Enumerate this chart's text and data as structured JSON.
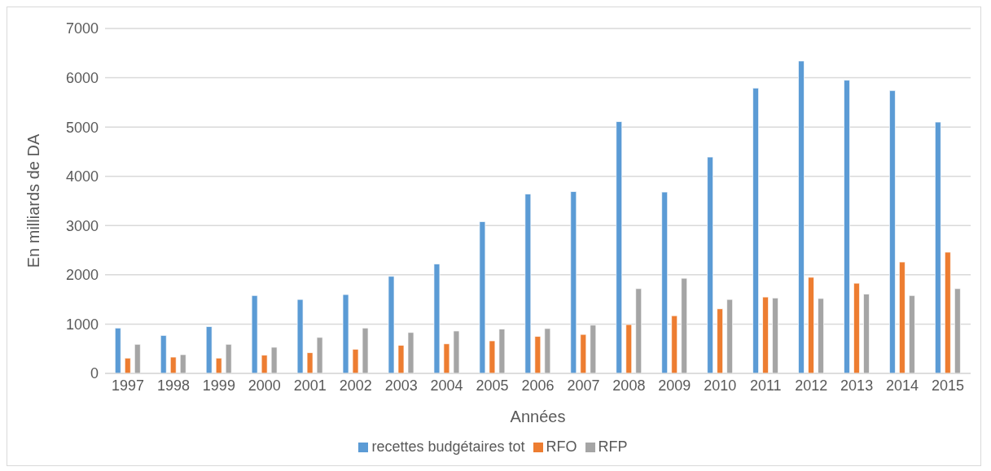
{
  "chart_data": {
    "type": "bar",
    "xlabel": "Années",
    "ylabel": "En milliards de DA",
    "categories": [
      "1997",
      "1998",
      "1999",
      "2000",
      "2001",
      "2002",
      "2003",
      "2004",
      "2005",
      "2006",
      "2007",
      "2008",
      "2009",
      "2010",
      "2011",
      "2012",
      "2013",
      "2014",
      "2015"
    ],
    "series": [
      {
        "name": "recettes budgétaires tot",
        "color": "#5b9bd5",
        "values": [
          920,
          770,
          950,
          1580,
          1500,
          1600,
          1970,
          2220,
          3080,
          3640,
          3690,
          5110,
          3680,
          4390,
          5790,
          6340,
          5950,
          5740,
          5100
        ]
      },
      {
        "name": "RFO",
        "color": "#ed7d31",
        "values": [
          310,
          330,
          310,
          370,
          420,
          490,
          570,
          600,
          660,
          750,
          790,
          990,
          1170,
          1310,
          1550,
          1950,
          1830,
          2260,
          2460
        ]
      },
      {
        "name": "RFP",
        "color": "#a5a5a5",
        "values": [
          590,
          380,
          590,
          530,
          730,
          920,
          830,
          860,
          900,
          910,
          980,
          1720,
          1930,
          1500,
          1530,
          1520,
          1610,
          1580,
          1720
        ]
      }
    ],
    "ylim": [
      0,
      7000
    ],
    "yticks": [
      0,
      1000,
      2000,
      3000,
      4000,
      5000,
      6000,
      7000
    ],
    "grid": "y",
    "legend": "bottom"
  }
}
